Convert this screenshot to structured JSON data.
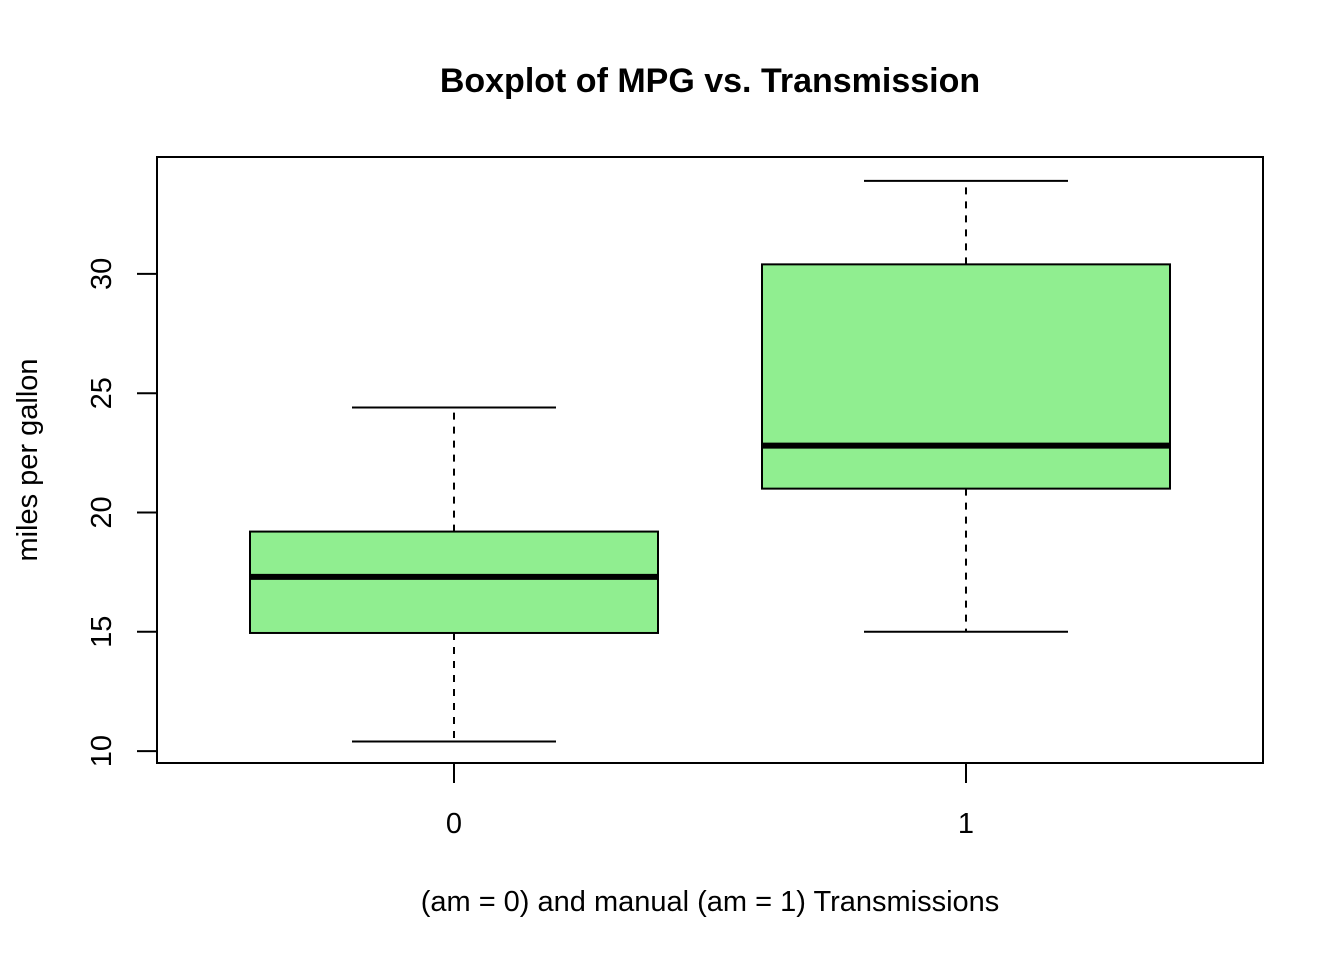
{
  "chart_data": {
    "type": "boxplot",
    "title": "Boxplot of MPG vs. Transmission",
    "xlabel": "(am = 0) and manual (am = 1) Transmissions",
    "ylabel": "miles per gallon",
    "categories": [
      "0",
      "1"
    ],
    "boxes": [
      {
        "category": "0",
        "whisker_low": 10.4,
        "q1": 14.95,
        "median": 17.3,
        "q3": 19.2,
        "whisker_high": 24.4
      },
      {
        "category": "1",
        "whisker_low": 15.0,
        "q1": 21.0,
        "median": 22.8,
        "q3": 30.4,
        "whisker_high": 33.9
      }
    ],
    "yticks": [
      10,
      15,
      20,
      25,
      30
    ],
    "ylim": [
      9.5,
      34.9
    ],
    "box_color": "#90ee90",
    "grid": false,
    "legend": "none"
  }
}
